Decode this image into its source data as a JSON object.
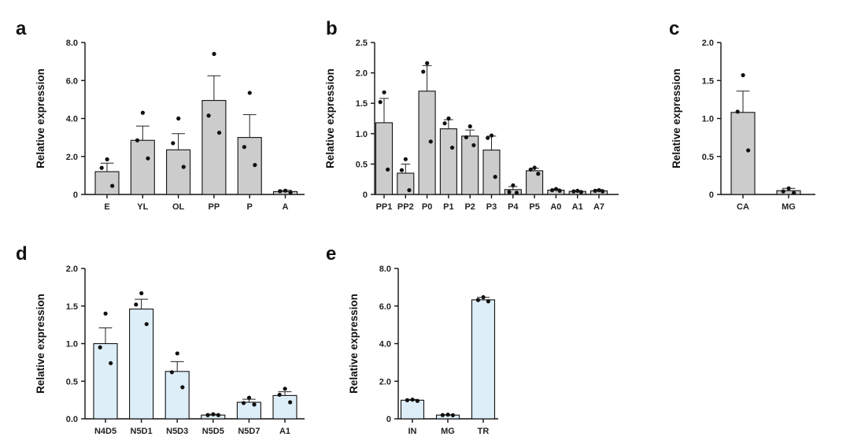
{
  "colors": {
    "gray_bar": "#cccccc",
    "blue_bar": "#deeef8",
    "ink": "#111111"
  },
  "chart_data": [
    {
      "panel": "a",
      "type": "bar",
      "ylabel": "Relative expression",
      "ylim": [
        0,
        8
      ],
      "yticks": [
        "0",
        "2.0",
        "4.0",
        "6.0",
        "8.0"
      ],
      "ytick_values": [
        0,
        2,
        4,
        6,
        8
      ],
      "categories": [
        "E",
        "YL",
        "OL",
        "PP",
        "P",
        "A"
      ],
      "values": [
        1.2,
        2.85,
        2.35,
        4.95,
        3.0,
        0.15
      ],
      "errors": [
        0.45,
        0.75,
        0.85,
        1.3,
        1.2,
        0.07
      ],
      "points": [
        [
          1.85,
          1.4,
          0.45
        ],
        [
          4.3,
          2.85,
          1.9
        ],
        [
          4.0,
          2.7,
          1.45
        ],
        [
          7.4,
          4.15,
          3.25
        ],
        [
          5.35,
          2.5,
          1.55
        ],
        [
          0.2,
          0.17,
          0.1
        ]
      ],
      "bar_color": "gray"
    },
    {
      "panel": "b",
      "type": "bar",
      "ylabel": "Relative expression",
      "ylim": [
        0,
        2.5
      ],
      "yticks": [
        "0",
        "0.5",
        "1.0",
        "1.5",
        "2.0",
        "2.5"
      ],
      "ytick_values": [
        0,
        0.5,
        1.0,
        1.5,
        2.0,
        2.5
      ],
      "categories": [
        "PP1",
        "PP2",
        "P0",
        "P1",
        "P2",
        "P3",
        "P4",
        "P5",
        "A0",
        "A1",
        "A7"
      ],
      "values": [
        1.18,
        0.35,
        1.7,
        1.08,
        0.96,
        0.73,
        0.08,
        0.39,
        0.07,
        0.05,
        0.06
      ],
      "errors": [
        0.4,
        0.15,
        0.42,
        0.15,
        0.1,
        0.23,
        0.05,
        0.04,
        0.02,
        0.01,
        0.02
      ],
      "points": [
        [
          1.68,
          1.52,
          0.41
        ],
        [
          0.58,
          0.4,
          0.07
        ],
        [
          2.16,
          2.02,
          0.87
        ],
        [
          1.25,
          1.17,
          0.77
        ],
        [
          1.12,
          0.94,
          0.81
        ],
        [
          0.97,
          0.93,
          0.29
        ],
        [
          0.15,
          0.04,
          0.03
        ],
        [
          0.44,
          0.41,
          0.34
        ],
        [
          0.09,
          0.07,
          0.06
        ],
        [
          0.06,
          0.05,
          0.04
        ],
        [
          0.07,
          0.06,
          0.05
        ]
      ],
      "bar_color": "gray"
    },
    {
      "panel": "c",
      "type": "bar",
      "ylabel": "Relative expression",
      "ylim": [
        0,
        2.0
      ],
      "yticks": [
        "0",
        "0.5",
        "1.0",
        "1.5",
        "2.0"
      ],
      "ytick_values": [
        0,
        0.5,
        1.0,
        1.5,
        2.0
      ],
      "categories": [
        "CA",
        "MG"
      ],
      "values": [
        1.08,
        0.05
      ],
      "errors": [
        0.28,
        0.03
      ],
      "points": [
        [
          1.57,
          1.09,
          0.58
        ],
        [
          0.08,
          0.04,
          0.02
        ]
      ],
      "bar_color": "gray"
    },
    {
      "panel": "d",
      "type": "bar",
      "ylabel": "Relative expression",
      "ylim": [
        0,
        2.0
      ],
      "yticks": [
        "0.0",
        "0.5",
        "1.0",
        "1.5",
        "2.0"
      ],
      "ytick_values": [
        0,
        0.5,
        1.0,
        1.5,
        2.0
      ],
      "categories": [
        "N4D5",
        "N5D1",
        "N5D3",
        "N5D5",
        "N5D7",
        "A1"
      ],
      "values": [
        1.0,
        1.46,
        0.63,
        0.05,
        0.22,
        0.31
      ],
      "errors": [
        0.21,
        0.13,
        0.13,
        0.01,
        0.04,
        0.05
      ],
      "points": [
        [
          1.4,
          0.95,
          0.74
        ],
        [
          1.67,
          1.52,
          1.26
        ],
        [
          0.87,
          0.62,
          0.42
        ],
        [
          0.06,
          0.05,
          0.05
        ],
        [
          0.28,
          0.21,
          0.19
        ],
        [
          0.4,
          0.32,
          0.22
        ]
      ],
      "bar_color": "blue"
    },
    {
      "panel": "e",
      "type": "bar",
      "ylabel": "Relative expression",
      "ylim": [
        0,
        8.0
      ],
      "yticks": [
        "0",
        "2.0",
        "4.0",
        "6.0",
        "8.0"
      ],
      "ytick_values": [
        0,
        2,
        4,
        6,
        8
      ],
      "categories": [
        "IN",
        "MG",
        "TR"
      ],
      "values": [
        0.99,
        0.2,
        6.33
      ],
      "errors": [
        0.04,
        0.02,
        0.13
      ],
      "points": [
        [
          1.02,
          0.99,
          0.95
        ],
        [
          0.22,
          0.2,
          0.19
        ],
        [
          6.47,
          6.32,
          6.25
        ]
      ],
      "bar_color": "blue"
    }
  ]
}
